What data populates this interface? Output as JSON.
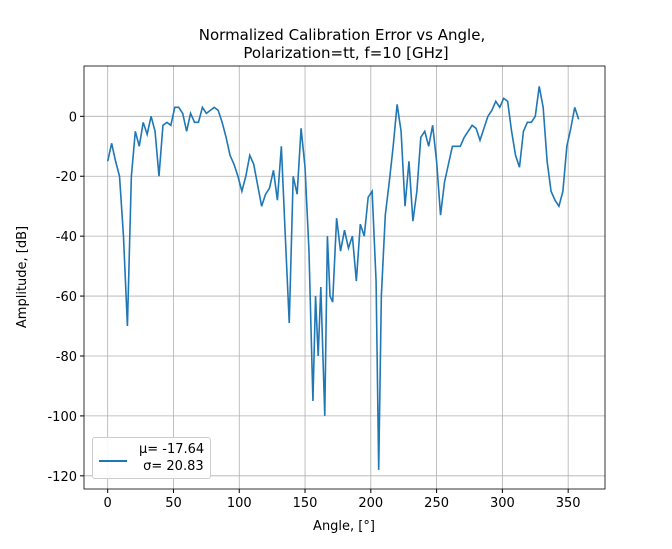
{
  "chart_data": {
    "type": "line",
    "title": [
      "Normalized Calibration Error vs Angle,",
      "Polarization=tt, f=10 [GHz]"
    ],
    "x_label": "Angle, [°]",
    "y_label": "Amplitude, [dB]",
    "x": [
      0,
      3,
      6,
      9,
      12,
      15,
      18,
      21,
      24,
      27,
      30,
      33,
      36,
      39,
      42,
      45,
      48,
      51,
      54,
      57,
      60,
      63,
      66,
      69,
      72,
      75,
      78,
      81,
      84,
      87,
      90,
      93,
      96,
      99,
      102,
      105,
      108,
      111,
      114,
      117,
      120,
      123,
      126,
      129,
      132,
      135,
      138,
      141,
      144,
      147,
      150,
      153,
      156,
      158,
      160,
      162,
      165,
      167,
      169,
      171,
      174,
      177,
      180,
      183,
      186,
      189,
      192,
      195,
      198,
      201,
      204,
      206,
      208,
      211,
      214,
      217,
      220,
      223,
      226,
      229,
      232,
      235,
      238,
      241,
      244,
      247,
      250,
      253,
      256,
      259,
      262,
      265,
      268,
      271,
      274,
      277,
      280,
      283,
      286,
      289,
      292,
      295,
      298,
      301,
      304,
      307,
      310,
      313,
      316,
      319,
      322,
      325,
      328,
      331,
      334,
      337,
      340,
      343,
      346,
      349,
      352,
      355,
      358
    ],
    "series": [
      {
        "name": "μ= -17.64\n σ= 20.83",
        "color": "#1f77b4",
        "values": [
          -15,
          -9,
          -15,
          -20,
          -40,
          -70,
          -20,
          -5,
          -10,
          -2,
          -6,
          0,
          -5,
          -20,
          -3,
          -2,
          -3,
          3,
          3,
          1,
          -5,
          1,
          -2,
          -2,
          3,
          1,
          2,
          3,
          2,
          -2,
          -7,
          -13,
          -16,
          -20,
          -25,
          -20,
          -13,
          -16,
          -23,
          -30,
          -26,
          -24,
          -18,
          -28,
          -10,
          -40,
          -69,
          -20,
          -26,
          -4,
          -17,
          -45,
          -95,
          -60,
          -80,
          -57,
          -100,
          -40,
          -60,
          -62,
          -34,
          -45,
          -38,
          -44,
          -40,
          -55,
          -36,
          -40,
          -27,
          -25,
          -55,
          -118,
          -60,
          -33,
          -22,
          -10,
          4,
          -5,
          -30,
          -15,
          -35,
          -25,
          -7,
          -5,
          -10,
          -3,
          -15,
          -33,
          -22,
          -16,
          -10,
          -10,
          -10,
          -7,
          -5,
          -3,
          -4,
          -8,
          -4,
          0,
          2,
          5,
          3,
          6,
          5,
          -5,
          -13,
          -17,
          -5,
          -2,
          -2,
          0,
          10,
          3,
          -15,
          -25,
          -28,
          -30,
          -25,
          -10,
          -4,
          3,
          -1
        ]
      }
    ],
    "xlim": [
      -18,
      378
    ],
    "ylim": [
      -124.4,
      16.8
    ],
    "xticks": [
      0,
      50,
      100,
      150,
      200,
      250,
      300,
      350
    ],
    "yticks": [
      -120,
      -100,
      -80,
      -60,
      -40,
      -20,
      0
    ],
    "grid": true,
    "legend": "lower left"
  }
}
